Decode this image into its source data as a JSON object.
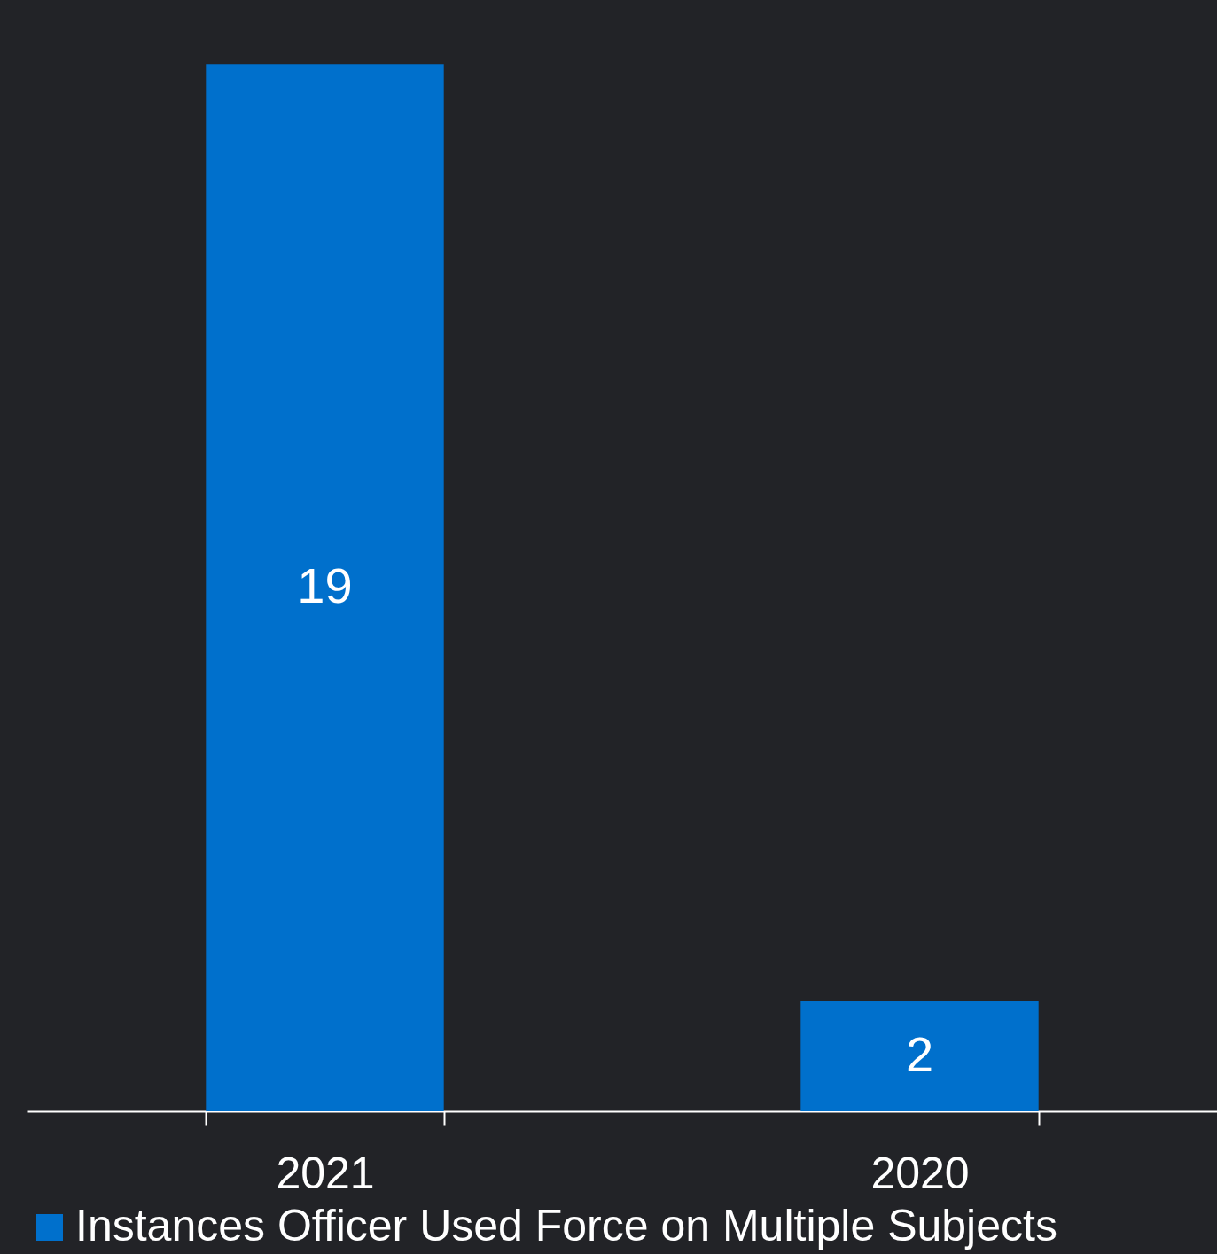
{
  "chart_data": {
    "type": "bar",
    "categories": [
      "2021",
      "2020"
    ],
    "series": [
      {
        "name": "Instances Officer Used Force on Multiple Subjects",
        "color": "#0070cc",
        "values": [
          19,
          2
        ]
      }
    ],
    "data_labels": true,
    "legend": "bottom",
    "grid": false,
    "tick_labels": "x"
  }
}
